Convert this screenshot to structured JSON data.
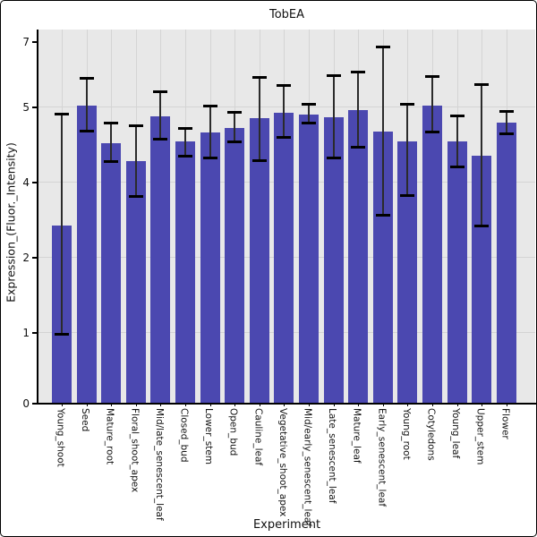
{
  "title": "TobEA",
  "chart_data": {
    "type": "bar",
    "title": "TobEA",
    "xlabel": "Experiment",
    "ylabel": "Expression_(Fluor._Intensity)",
    "legend": "none",
    "grid": "on",
    "plot_bg_color": "#e8e8e8",
    "grid_color": "#d4d4d4",
    "bar_color": "#4b48b0",
    "error_bar_color": "#000000",
    "ytick_labels": [
      "0",
      "1",
      "2",
      "4",
      "5",
      "7"
    ],
    "ytick_values": [
      0,
      1,
      2,
      4,
      5,
      7
    ],
    "categories": [
      "Young_shoot",
      "Seed",
      "Mature_root",
      "Floral_shoot_apex",
      "Mid/late_senescent_leaf",
      "Closed_bud",
      "Lower_stem",
      "Open_bud",
      "Cauline_leaf",
      "Vegetative_shoot_apex",
      "Mid/early_senescent_leaf",
      "Late_senescent_leaf",
      "Mature_leaf",
      "Early_senescent_leaf",
      "Young_root",
      "Cotyledons",
      "Young_leaf",
      "Upper_stem",
      "Flower"
    ],
    "values": [
      2.84,
      5.03,
      4.51,
      4.27,
      4.87,
      4.54,
      4.66,
      4.72,
      4.85,
      4.92,
      4.89,
      4.86,
      4.95,
      4.67,
      4.54,
      5.02,
      4.53,
      4.34,
      4.78
    ],
    "error_low": [
      0.97,
      4.68,
      4.27,
      3.61,
      4.57,
      4.35,
      4.32,
      4.54,
      4.29,
      4.59,
      4.79,
      4.32,
      4.46,
      3.11,
      3.65,
      4.67,
      4.2,
      2.83,
      4.64
    ],
    "error_high": [
      4.9,
      5.88,
      4.79,
      4.75,
      5.47,
      4.71,
      5.04,
      4.93,
      5.9,
      5.65,
      5.08,
      5.97,
      6.07,
      6.84,
      5.08,
      5.92,
      4.88,
      5.68,
      4.94
    ]
  }
}
